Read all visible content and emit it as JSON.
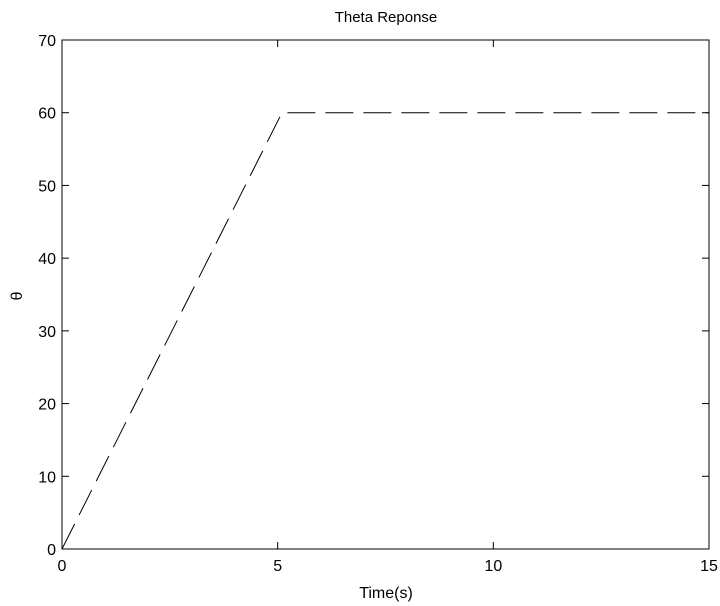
{
  "chart_data": {
    "type": "line",
    "title": "Theta Reponse",
    "xlabel": "Time(s)",
    "ylabel": "θ",
    "xlim": [
      0,
      15
    ],
    "ylim": [
      0,
      70
    ],
    "xticks": [
      "0",
      "5",
      "10",
      "15"
    ],
    "yticks": [
      "0",
      "10",
      "20",
      "30",
      "40",
      "50",
      "60",
      "70"
    ],
    "grid": false,
    "series": [
      {
        "line_style": "dashed",
        "color": "#000000",
        "x": [
          0,
          5.1,
          15
        ],
        "y": [
          0,
          60,
          60
        ]
      }
    ]
  }
}
